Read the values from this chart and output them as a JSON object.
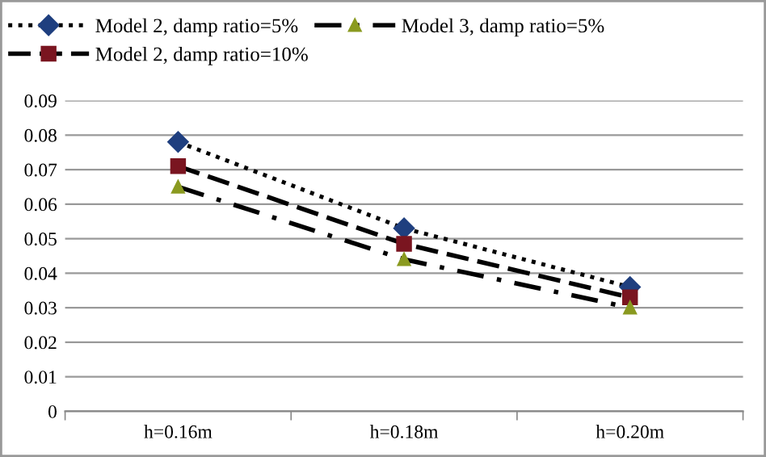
{
  "chart_data": {
    "type": "line",
    "categories": [
      "h=0.16m",
      "h=0.18m",
      "h=0.20m"
    ],
    "series": [
      {
        "name": "Model 2, damp ratio=5%",
        "color": "#1f3f7f",
        "marker": "diamond",
        "line_style": "dotted",
        "values": [
          0.078,
          0.053,
          0.036
        ]
      },
      {
        "name": "Model 2, damp ratio=10%",
        "color": "#7a1520",
        "marker": "square",
        "line_style": "dashed",
        "values": [
          0.071,
          0.0485,
          0.033
        ]
      },
      {
        "name": "Model 3, damp ratio=5%",
        "color": "#8a9a20",
        "marker": "triangle",
        "line_style": "dashdot",
        "values": [
          0.065,
          0.044,
          0.03
        ]
      }
    ],
    "ylim": [
      0,
      0.09
    ],
    "yticks": [
      0,
      0.01,
      0.02,
      0.03,
      0.04,
      0.05,
      0.06,
      0.07,
      0.08,
      0.09
    ],
    "grid": "y",
    "legend": "top"
  }
}
